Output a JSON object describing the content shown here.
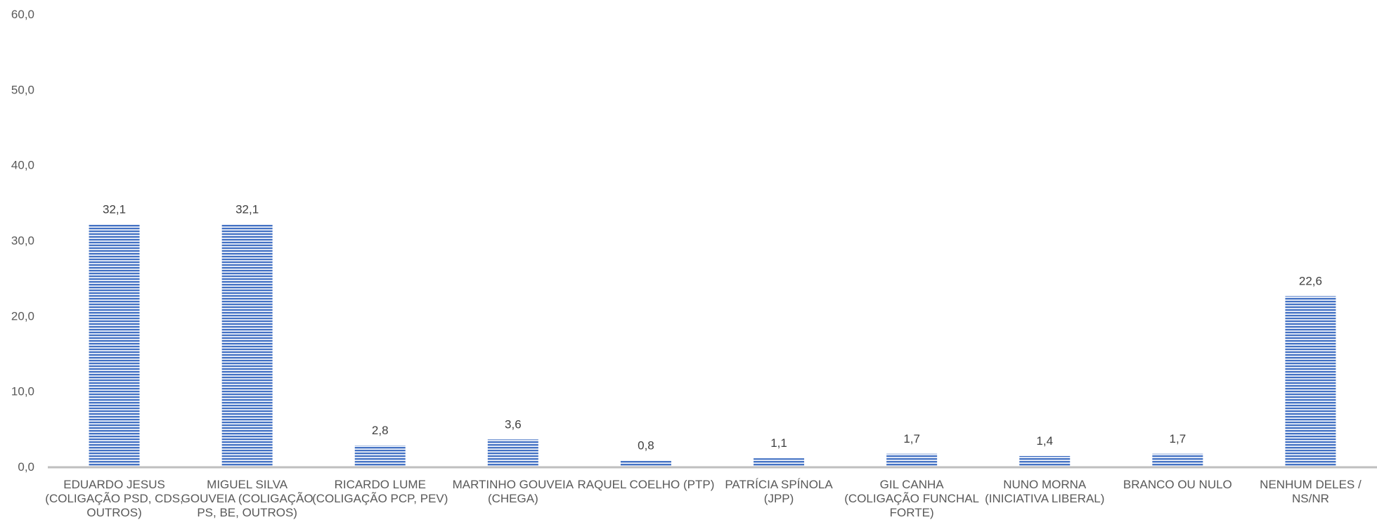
{
  "chart_data": {
    "type": "bar",
    "title": "",
    "xlabel": "",
    "ylabel": "",
    "ylim": [
      0,
      60
    ],
    "yticks": [
      "0,0",
      "10,0",
      "20,0",
      "30,0",
      "40,0",
      "50,0",
      "60,0"
    ],
    "grid": false,
    "legend": "none",
    "bar_color": "#4472C4",
    "categories": [
      [
        "EDUARDO JESUS",
        "(COLIGAÇÃO PSD, CDS,",
        "OUTROS)"
      ],
      [
        "MIGUEL SILVA",
        "GOUVEIA (COLIGAÇÃO",
        "PS, BE, OUTROS)"
      ],
      [
        "RICARDO LUME",
        "(COLIGAÇÃO PCP, PEV)"
      ],
      [
        "MARTINHO GOUVEIA",
        "(CHEGA)"
      ],
      [
        "RAQUEL COELHO (PTP)"
      ],
      [
        "PATRÍCIA SPÍNOLA",
        "(JPP)"
      ],
      [
        "GIL CANHA",
        "(COLIGAÇÃO FUNCHAL",
        "FORTE)"
      ],
      [
        "NUNO MORNA",
        "(INICIATIVA LIBERAL)"
      ],
      [
        "BRANCO OU NULO"
      ],
      [
        "NENHUM DELES /",
        "NS/NR"
      ]
    ],
    "values": [
      32.1,
      32.1,
      2.8,
      3.6,
      0.8,
      1.1,
      1.7,
      1.4,
      1.7,
      22.6
    ],
    "data_labels": [
      "32,1",
      "32,1",
      "2,8",
      "3,6",
      "0,8",
      "1,1",
      "1,7",
      "1,4",
      "1,7",
      "22,6"
    ]
  }
}
